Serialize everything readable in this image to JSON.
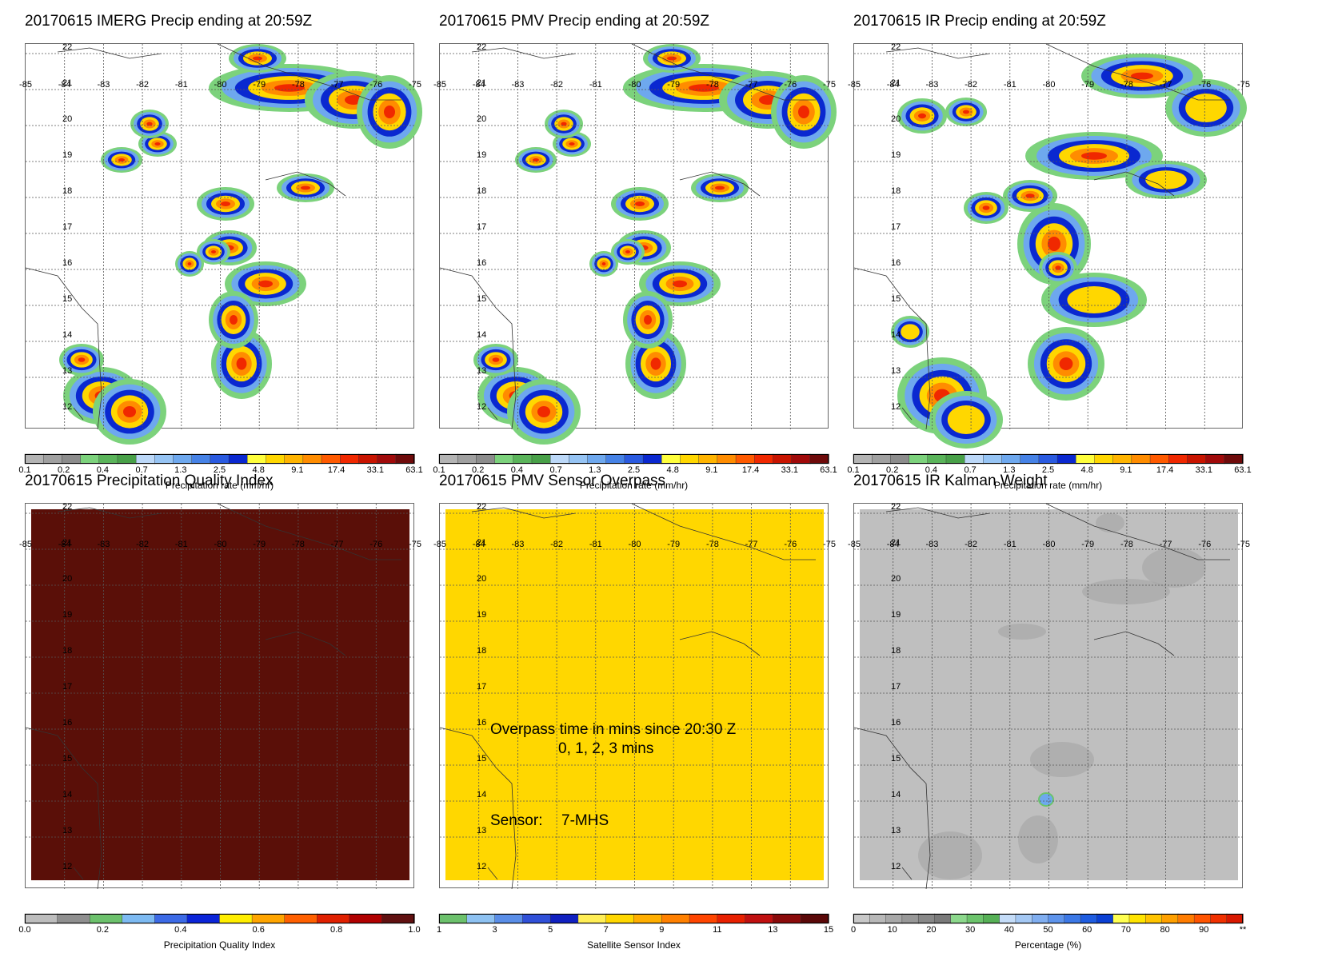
{
  "lon_ticks": [
    "-85",
    "-84",
    "-83",
    "-82",
    "-81",
    "-80",
    "-79",
    "-78",
    "-77",
    "-76",
    "-75"
  ],
  "lat_ticks": [
    "22",
    "21",
    "20",
    "19",
    "18",
    "17",
    "16",
    "15",
    "14",
    "13",
    "12"
  ],
  "panels": [
    {
      "title": "20170615 IMERG Precip ending at 20:59Z",
      "fill": "precip",
      "colorbar": {
        "ticks": [
          "0.1",
          "0.2",
          "0.4",
          "0.7",
          "1.3",
          "2.5",
          "4.8",
          "9.1",
          "17.4",
          "33.1",
          "63.1"
        ],
        "label": "Precipitation rate (mm/hr)"
      }
    },
    {
      "title": "20170615 PMV Precip ending at 20:59Z",
      "fill": "precip",
      "colorbar": {
        "ticks": [
          "0.1",
          "0.2",
          "0.4",
          "0.7",
          "1.3",
          "2.5",
          "4.8",
          "9.1",
          "17.4",
          "33.1",
          "63.1"
        ],
        "label": "Precipitation rate (mm/hr)"
      }
    },
    {
      "title": "20170615 IR Precip ending at 20:59Z",
      "fill": "precip-ir",
      "colorbar": {
        "ticks": [
          "0.1",
          "0.2",
          "0.4",
          "0.7",
          "1.3",
          "2.5",
          "4.8",
          "9.1",
          "17.4",
          "33.1",
          "63.1"
        ],
        "label": "Precipitation rate (mm/hr)"
      }
    },
    {
      "title": "20170615 Precipitation Quality Index",
      "fill": "solid",
      "fill_color": "#5a0f08",
      "colorbar": {
        "ticks": [
          "0.0",
          "0.2",
          "0.4",
          "0.6",
          "0.8",
          "1.0"
        ],
        "label": "Precipitation Quality Index"
      }
    },
    {
      "title": "20170615 PMV Sensor Overpass",
      "fill": "solid",
      "fill_color": "#ffd700",
      "overpass_lines": [
        "Overpass time in mins since 20:30 Z",
        "0, 1, 2, 3 mins"
      ],
      "sensor_label": "Sensor:",
      "sensor_value": "7-MHS",
      "colorbar": {
        "ticks": [
          "1",
          "3",
          "5",
          "7",
          "9",
          "11",
          "13",
          "15"
        ],
        "label": "Satellite Sensor Index"
      }
    },
    {
      "title": "20170615 IR Kalman Weight",
      "fill": "gray",
      "fill_color": "#bfbfbf",
      "colorbar": {
        "ticks": [
          "0",
          "10",
          "20",
          "30",
          "40",
          "50",
          "60",
          "70",
          "80",
          "90",
          "**"
        ],
        "label": "Percentage (%)"
      }
    }
  ],
  "colorscales": {
    "precip": [
      "#b4b4b4",
      "#a0a0a0",
      "#8c8c8c",
      "#7cd27c",
      "#5ab45a",
      "#48a048",
      "#bcd8f8",
      "#96c4f4",
      "#6ea8ee",
      "#4682e6",
      "#2a5ae0",
      "#0a28d0",
      "#ffff3c",
      "#ffd700",
      "#ffb400",
      "#ff8c00",
      "#ff5a00",
      "#f02800",
      "#c81400",
      "#a00a0a",
      "#6e0a0a"
    ],
    "quality": [
      "#bdbdbd",
      "#8f8f8f",
      "#6cc16c",
      "#7dbaf2",
      "#3c6ae6",
      "#0a24d8",
      "#ffee00",
      "#ffa500",
      "#ff6000",
      "#e02000",
      "#b00000",
      "#601010"
    ],
    "sensor": [
      "#6cc16c",
      "#8ec2f2",
      "#5a8ee8",
      "#3050d8",
      "#1020c0",
      "#ffee55",
      "#ffd700",
      "#ffae00",
      "#ff8000",
      "#ff4500",
      "#e82000",
      "#c01010",
      "#8a0a0a",
      "#5a0808"
    ],
    "kalman": [
      "#c8c8c8",
      "#b8b8b8",
      "#a8a8a8",
      "#989898",
      "#888888",
      "#7a7a7a",
      "#8cd88c",
      "#6cc46c",
      "#56b056",
      "#c4dcf8",
      "#a4c8f4",
      "#80aef0",
      "#5e94ec",
      "#3c78e6",
      "#1e5ce0",
      "#0a40d4",
      "#ffff50",
      "#ffe400",
      "#ffc400",
      "#ffa000",
      "#ff7c00",
      "#ff5400",
      "#f03000",
      "#d81800"
    ]
  }
}
